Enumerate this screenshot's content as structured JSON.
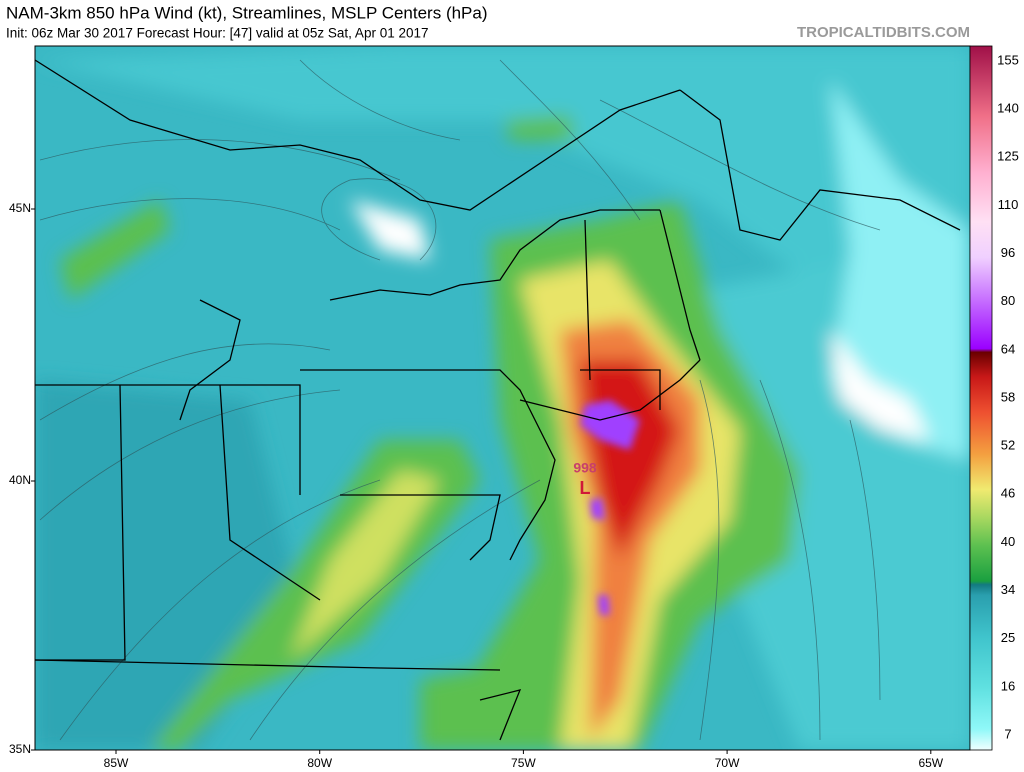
{
  "header": {
    "title": "NAM-3km 850 hPa Wind (kt), Streamlines, MSLP Centers (hPa)",
    "subtitle": "Init: 06z Mar 30 2017   Forecast Hour: [47]   valid at 05z Sat, Apr 01 2017",
    "site": "TROPICALTIDBITS.COM"
  },
  "map": {
    "lat_labels": [
      "45N",
      "40N",
      "35N"
    ],
    "lon_labels": [
      "85W",
      "80W",
      "75W",
      "70W",
      "65W"
    ],
    "low": {
      "pressure": "998",
      "symbol": "L"
    }
  },
  "colorbar": {
    "labels": [
      7,
      16,
      25,
      34,
      40,
      46,
      52,
      58,
      64,
      80,
      96,
      110,
      125,
      140,
      155
    ]
  }
}
